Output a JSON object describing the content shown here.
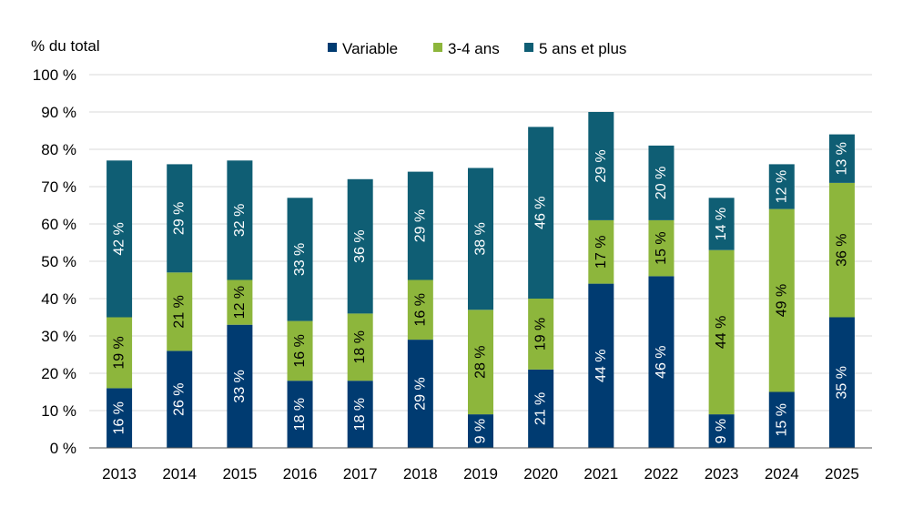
{
  "chart_data": {
    "type": "bar",
    "stacked": true,
    "ylabel": "% du total",
    "ylim": [
      0,
      100
    ],
    "yticks": [
      0,
      10,
      20,
      30,
      40,
      50,
      60,
      70,
      80,
      90,
      100
    ],
    "ytick_labels": [
      "0 %",
      "10 %",
      "20 %",
      "30 %",
      "40 %",
      "50 %",
      "60 %",
      "70 %",
      "80 %",
      "90 %",
      "100 %"
    ],
    "grid": true,
    "legend_position": "top",
    "categories": [
      "2013",
      "2014",
      "2015",
      "2016",
      "2017",
      "2018",
      "2019",
      "2020",
      "2021",
      "2022",
      "2023",
      "2024",
      "2025"
    ],
    "series": [
      {
        "name": "Variable",
        "color": "#003B71",
        "values": [
          16,
          26,
          33,
          18,
          18,
          29,
          9,
          21,
          44,
          46,
          9,
          15,
          35
        ],
        "labels": [
          "16 %",
          "26 %",
          "33 %",
          "18 %",
          "18 %",
          "29 %",
          "9 %",
          "21 %",
          "44 %",
          "46 %",
          "9 %",
          "15 %",
          "35 %"
        ],
        "label_color": "#ffffff"
      },
      {
        "name": "3-4 ans",
        "color": "#8DB63C",
        "values": [
          19,
          21,
          12,
          16,
          18,
          16,
          28,
          19,
          17,
          15,
          44,
          49,
          36
        ],
        "labels": [
          "19 %",
          "21 %",
          "12 %",
          "16 %",
          "18 %",
          "16 %",
          "28 %",
          "19 %",
          "17 %",
          "15 %",
          "44 %",
          "49 %",
          "36 %"
        ],
        "label_color": "#000000"
      },
      {
        "name": "5 ans et plus",
        "color": "#0F5E74",
        "values": [
          42,
          29,
          32,
          33,
          36,
          29,
          38,
          46,
          29,
          20,
          14,
          12,
          13
        ],
        "labels": [
          "42 %",
          "29 %",
          "32 %",
          "33 %",
          "36 %",
          "29 %",
          "38 %",
          "46 %",
          "29 %",
          "20 %",
          "14 %",
          "12 %",
          "13 %"
        ],
        "label_color": "#ffffff"
      }
    ]
  }
}
